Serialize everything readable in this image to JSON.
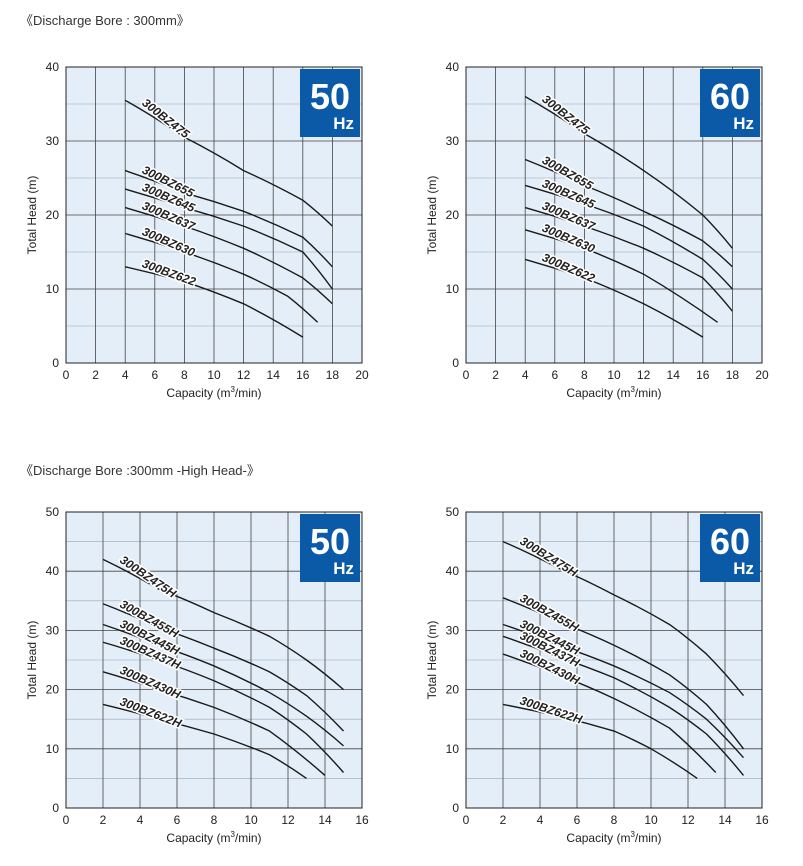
{
  "titles": {
    "top": "《Discharge Bore : 300mm》",
    "bottom": "《Discharge Bore :300mm -High Head-》"
  },
  "colors": {
    "badge": "#0b5aa8",
    "plot_bg": "#e3eef8",
    "grid": "#444444",
    "curve": "#1a1a1a"
  },
  "chart_data": [
    {
      "type": "line",
      "xlabel": "Capacity (m",
      "xlabel_sup": "3",
      "xlabel_tail": "/min)",
      "ylabel": "Total Head (m)",
      "xlim": [
        0,
        20
      ],
      "ylim": [
        0,
        40
      ],
      "xticks": [
        0,
        2,
        4,
        6,
        8,
        10,
        12,
        14,
        16,
        18,
        20
      ],
      "yticks": [
        0,
        10,
        20,
        30,
        40
      ],
      "grid": true,
      "badge": {
        "number": "50",
        "unit": "Hz"
      },
      "series": [
        {
          "name": "300BZ475",
          "points": [
            [
              4,
              35.5
            ],
            [
              8,
              30.5
            ],
            [
              12,
              26
            ],
            [
              16,
              22
            ],
            [
              18,
              18.5
            ]
          ]
        },
        {
          "name": "300BZ655",
          "points": [
            [
              4,
              26
            ],
            [
              8,
              23
            ],
            [
              12,
              20.5
            ],
            [
              16,
              17
            ],
            [
              18,
              13
            ]
          ]
        },
        {
          "name": "300BZ645",
          "points": [
            [
              4,
              23.5
            ],
            [
              8,
              21
            ],
            [
              12,
              18.5
            ],
            [
              16,
              15
            ],
            [
              18,
              10
            ]
          ]
        },
        {
          "name": "300BZ637",
          "points": [
            [
              4,
              21
            ],
            [
              8,
              18.5
            ],
            [
              12,
              15.5
            ],
            [
              16,
              11.5
            ],
            [
              18,
              8
            ]
          ]
        },
        {
          "name": "300BZ630",
          "points": [
            [
              4,
              17.5
            ],
            [
              8,
              15
            ],
            [
              12,
              12
            ],
            [
              15,
              9
            ],
            [
              17,
              5.5
            ]
          ]
        },
        {
          "name": "300BZ622",
          "points": [
            [
              4,
              13
            ],
            [
              8,
              11
            ],
            [
              12,
              8
            ],
            [
              16,
              3.5
            ]
          ]
        }
      ]
    },
    {
      "type": "line",
      "xlabel": "Capacity (m",
      "xlabel_sup": "3",
      "xlabel_tail": "/min)",
      "ylabel": "Total Head (m)",
      "xlim": [
        0,
        20
      ],
      "ylim": [
        0,
        40
      ],
      "xticks": [
        0,
        2,
        4,
        6,
        8,
        10,
        12,
        14,
        16,
        18,
        20
      ],
      "yticks": [
        0,
        10,
        20,
        30,
        40
      ],
      "grid": true,
      "badge": {
        "number": "60",
        "unit": "Hz"
      },
      "series": [
        {
          "name": "300BZ475",
          "points": [
            [
              4,
              36
            ],
            [
              8,
              31
            ],
            [
              12,
              26
            ],
            [
              16,
              20
            ],
            [
              18,
              15.5
            ]
          ]
        },
        {
          "name": "300BZ655",
          "points": [
            [
              4,
              27.5
            ],
            [
              8,
              24
            ],
            [
              12,
              20.5
            ],
            [
              16,
              16.5
            ],
            [
              18,
              13
            ]
          ]
        },
        {
          "name": "300BZ645",
          "points": [
            [
              4,
              24
            ],
            [
              8,
              21.5
            ],
            [
              12,
              18.5
            ],
            [
              16,
              14
            ],
            [
              18,
              10
            ]
          ]
        },
        {
          "name": "300BZ637",
          "points": [
            [
              4,
              21
            ],
            [
              8,
              18.5
            ],
            [
              12,
              15.5
            ],
            [
              16,
              11.5
            ],
            [
              18,
              7
            ]
          ]
        },
        {
          "name": "300BZ630",
          "points": [
            [
              4,
              18
            ],
            [
              8,
              15.5
            ],
            [
              12,
              12
            ],
            [
              17,
              5.5
            ]
          ]
        },
        {
          "name": "300BZ622",
          "points": [
            [
              4,
              14
            ],
            [
              8,
              11.5
            ],
            [
              12,
              8
            ],
            [
              16,
              3.5
            ]
          ]
        }
      ]
    },
    {
      "type": "line",
      "xlabel": "Capacity (m",
      "xlabel_sup": "3",
      "xlabel_tail": "/min)",
      "ylabel": "Total Head (m)",
      "xlim": [
        0,
        16
      ],
      "ylim": [
        0,
        50
      ],
      "xticks": [
        0,
        2,
        4,
        6,
        8,
        10,
        12,
        14,
        16
      ],
      "yticks": [
        0,
        10,
        20,
        30,
        40,
        50
      ],
      "grid": true,
      "badge": {
        "number": "50",
        "unit": "Hz"
      },
      "series": [
        {
          "name": "300BZ475H",
          "points": [
            [
              2,
              42
            ],
            [
              5,
              37
            ],
            [
              8,
              33
            ],
            [
              11,
              29
            ],
            [
              13,
              25
            ],
            [
              15,
              20
            ]
          ]
        },
        {
          "name": "300BZ455H",
          "points": [
            [
              2,
              34.5
            ],
            [
              5,
              30.5
            ],
            [
              8,
              27
            ],
            [
              11,
              23
            ],
            [
              13,
              19
            ],
            [
              15,
              13
            ]
          ]
        },
        {
          "name": "300BZ445H",
          "points": [
            [
              2,
              31
            ],
            [
              5,
              27.5
            ],
            [
              8,
              24
            ],
            [
              11,
              19.5
            ],
            [
              13,
              15.5
            ],
            [
              15,
              10.5
            ]
          ]
        },
        {
          "name": "300BZ437H",
          "points": [
            [
              2,
              28
            ],
            [
              5,
              25
            ],
            [
              8,
              21.5
            ],
            [
              11,
              17
            ],
            [
              13,
              12.5
            ],
            [
              15,
              6
            ]
          ]
        },
        {
          "name": "300BZ430H",
          "points": [
            [
              2,
              23
            ],
            [
              5,
              20
            ],
            [
              8,
              17
            ],
            [
              11,
              13
            ],
            [
              14,
              5.5
            ]
          ]
        },
        {
          "name": "300BZ622H",
          "points": [
            [
              2,
              17.5
            ],
            [
              5,
              15
            ],
            [
              8,
              12.5
            ],
            [
              11,
              9
            ],
            [
              13,
              5
            ]
          ]
        }
      ]
    },
    {
      "type": "line",
      "xlabel": "Capacity (m",
      "xlabel_sup": "3",
      "xlabel_tail": "/min)",
      "ylabel": "Total Head (m)",
      "xlim": [
        0,
        16
      ],
      "ylim": [
        0,
        50
      ],
      "xticks": [
        0,
        2,
        4,
        6,
        8,
        10,
        12,
        14,
        16
      ],
      "yticks": [
        0,
        10,
        20,
        30,
        40,
        50
      ],
      "grid": true,
      "badge": {
        "number": "60",
        "unit": "Hz"
      },
      "series": [
        {
          "name": "300BZ475H",
          "points": [
            [
              2,
              45
            ],
            [
              5,
              40.5
            ],
            [
              8,
              36
            ],
            [
              11,
              31
            ],
            [
              13,
              26
            ],
            [
              15,
              19
            ]
          ]
        },
        {
          "name": "300BZ455H",
          "points": [
            [
              2,
              35.5
            ],
            [
              5,
              31.5
            ],
            [
              8,
              27.5
            ],
            [
              11,
              22.5
            ],
            [
              13,
              17.5
            ],
            [
              15,
              10
            ]
          ]
        },
        {
          "name": "300BZ445H",
          "points": [
            [
              2,
              31
            ],
            [
              5,
              27.5
            ],
            [
              8,
              24
            ],
            [
              11,
              19.5
            ],
            [
              13,
              15
            ],
            [
              15,
              8.5
            ]
          ]
        },
        {
          "name": "300BZ437H",
          "points": [
            [
              2,
              29
            ],
            [
              5,
              25.5
            ],
            [
              8,
              22
            ],
            [
              11,
              17
            ],
            [
              13,
              12.5
            ],
            [
              15,
              5.5
            ]
          ]
        },
        {
          "name": "300BZ430H",
          "points": [
            [
              2,
              26
            ],
            [
              5,
              22.5
            ],
            [
              8,
              18.5
            ],
            [
              11,
              13.5
            ],
            [
              13.5,
              6
            ]
          ]
        },
        {
          "name": "300BZ622H",
          "points": [
            [
              2,
              17.5
            ],
            [
              5,
              15.5
            ],
            [
              8,
              13
            ],
            [
              10,
              10
            ],
            [
              12.5,
              5
            ]
          ]
        }
      ]
    }
  ]
}
